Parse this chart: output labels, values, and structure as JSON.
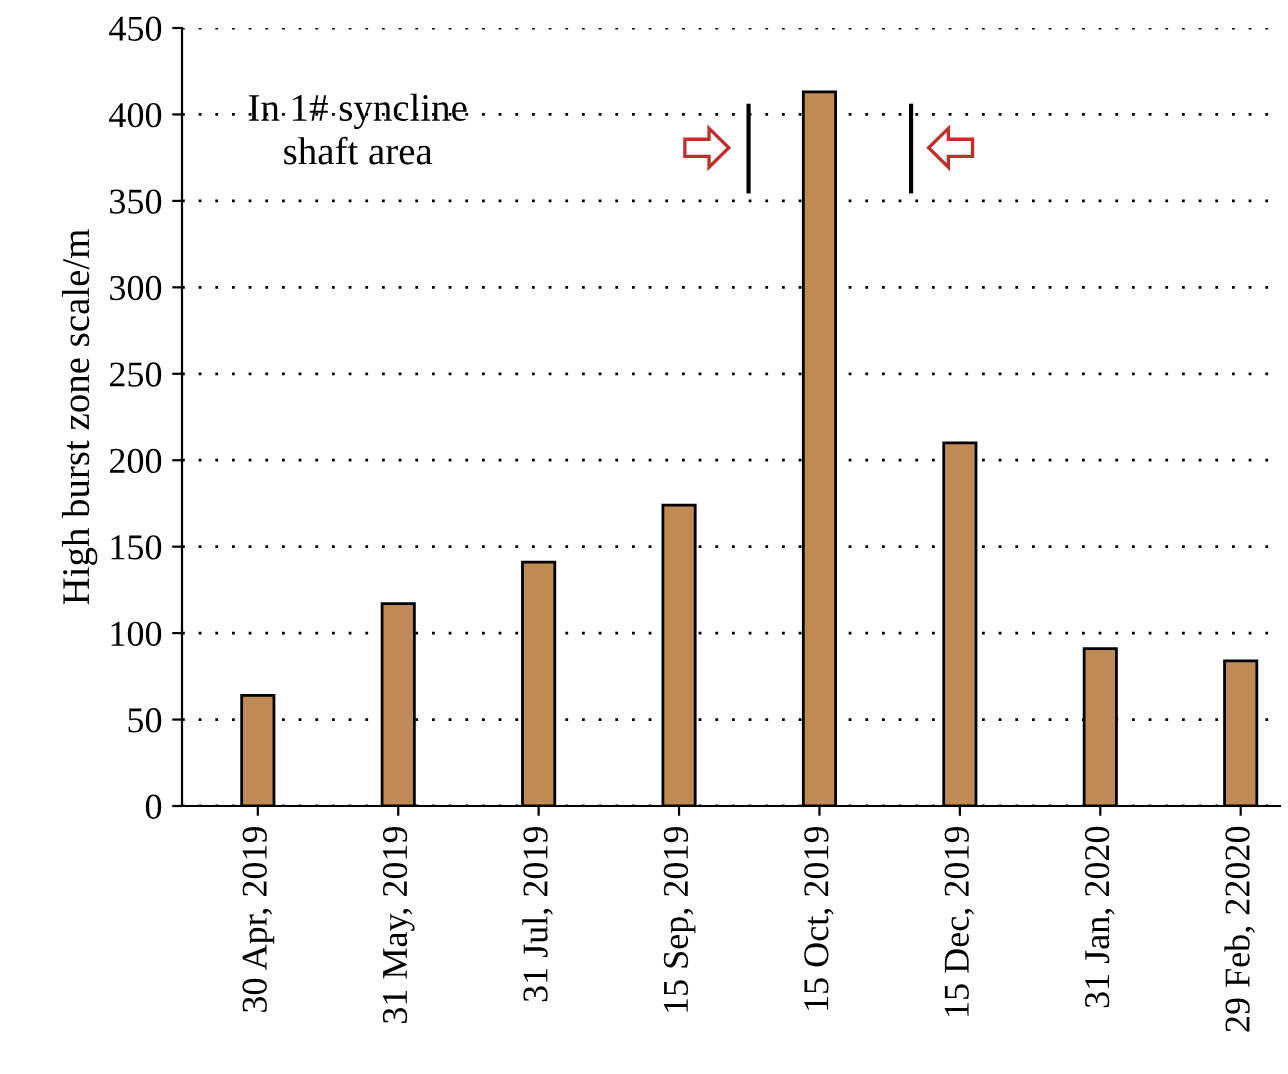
{
  "chart_data": {
    "type": "bar",
    "ylabel": "High burst zone scale/m",
    "categories": [
      "30 Apr, 2019",
      "31 May, 2019",
      "31 Jul, 2019",
      "15 Sep, 2019",
      "15 Oct, 2019",
      "15 Dec, 2019",
      "31 Jan, 2020",
      "29 Feb, 22020"
    ],
    "values": [
      64,
      117,
      141,
      174,
      413,
      210,
      91,
      84
    ],
    "color": "#c08a55",
    "ylim": [
      0,
      450
    ],
    "yticks": [
      0,
      50,
      100,
      150,
      200,
      250,
      300,
      350,
      400,
      450
    ],
    "grid": "y",
    "annotations": [
      "In 1# syncline\nshaft area"
    ]
  }
}
